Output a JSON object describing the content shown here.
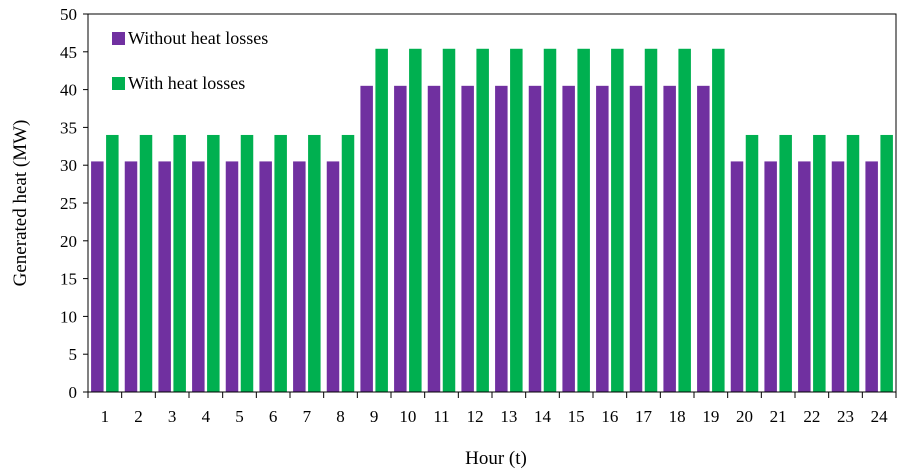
{
  "chart_data": {
    "type": "bar",
    "title": "",
    "xlabel": "Hour (t)",
    "ylabel": "Generated heat (MW)",
    "ylim": [
      0,
      50
    ],
    "yticks": [
      0,
      5,
      10,
      15,
      20,
      25,
      30,
      35,
      40,
      45,
      50
    ],
    "grid": false,
    "legend_position": "top-left",
    "categories": [
      "1",
      "2",
      "3",
      "4",
      "5",
      "6",
      "7",
      "8",
      "9",
      "10",
      "11",
      "12",
      "13",
      "14",
      "15",
      "16",
      "17",
      "18",
      "19",
      "20",
      "21",
      "22",
      "23",
      "24"
    ],
    "series": [
      {
        "name": "Without heat losses",
        "color": "#7030A0",
        "values": [
          30.5,
          30.5,
          30.5,
          30.5,
          30.5,
          30.5,
          30.5,
          30.5,
          40.5,
          40.5,
          40.5,
          40.5,
          40.5,
          40.5,
          40.5,
          40.5,
          40.5,
          40.5,
          40.5,
          30.5,
          30.5,
          30.5,
          30.5,
          30.5
        ]
      },
      {
        "name": "With heat losses",
        "color": "#00B050",
        "values": [
          34,
          34,
          34,
          34,
          34,
          34,
          34,
          34,
          45.4,
          45.4,
          45.4,
          45.4,
          45.4,
          45.4,
          45.4,
          45.4,
          45.4,
          45.4,
          45.4,
          34,
          34,
          34,
          34,
          34
        ]
      }
    ]
  }
}
